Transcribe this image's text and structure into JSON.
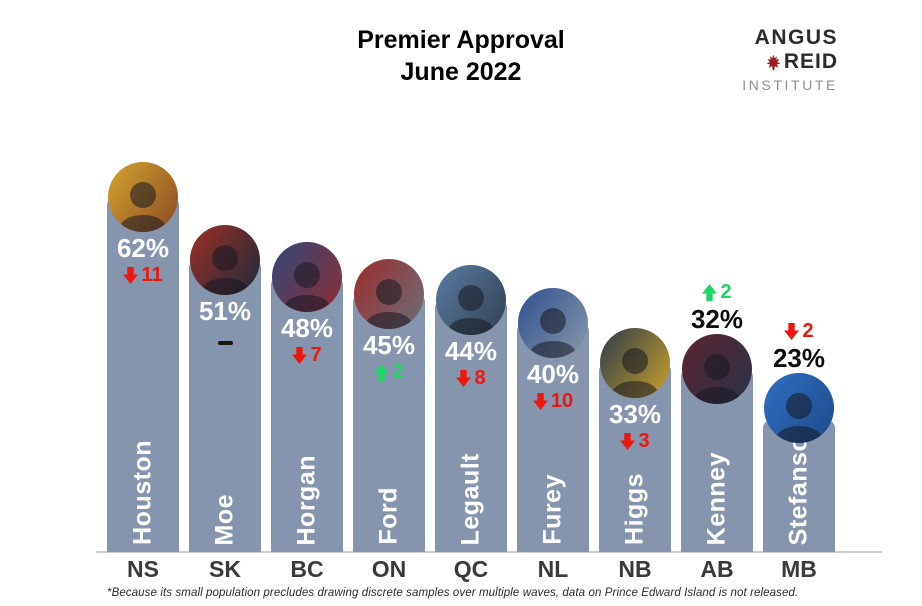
{
  "header": {
    "title_line1": "Premier Approval",
    "title_line2": "June 2022",
    "logo": {
      "line1": "ANGUS",
      "line2": "REID",
      "line3": "INSTITUTE",
      "leaf_color": "#9e1c1f"
    }
  },
  "footnote": "*Because its small population precludes drawing discrete samples over multiple waves, data on Prince Edward Island is not released.",
  "colors": {
    "bar": "#8595ae",
    "up": "#20d565",
    "down": "#ee170d",
    "pct_inside_text": "#ffffff",
    "pct_above_text": "#0d0d0d",
    "province_label": "#3a3a3a",
    "axis_line": "#cccccc",
    "no_change_dash": "#151515"
  },
  "chart_data": {
    "type": "bar",
    "title": "Premier Approval",
    "subtitle": "June 2022",
    "unit": "%",
    "ylim": [
      0,
      65
    ],
    "legend_position": "none",
    "grid": false,
    "categories": [
      "NS",
      "SK",
      "BC",
      "ON",
      "QC",
      "NL",
      "NB",
      "AB",
      "MB"
    ],
    "values": [
      62,
      51,
      48,
      45,
      44,
      40,
      33,
      32,
      23
    ],
    "changes": [
      -11,
      0,
      -7,
      2,
      -8,
      -10,
      -3,
      2,
      -2
    ],
    "premiers": [
      {
        "province": "NS",
        "name": "Houston",
        "approval": 62,
        "change": -11,
        "labels_above": false,
        "photo_colors": [
          "#d4a52f",
          "#8a4a23"
        ]
      },
      {
        "province": "SK",
        "name": "Moe",
        "approval": 51,
        "change": 0,
        "labels_above": false,
        "photo_colors": [
          "#9e2f26",
          "#1c2a3a"
        ]
      },
      {
        "province": "BC",
        "name": "Horgan",
        "approval": 48,
        "change": -7,
        "labels_above": false,
        "photo_colors": [
          "#31487a",
          "#8c2d33"
        ]
      },
      {
        "province": "ON",
        "name": "Ford",
        "approval": 45,
        "change": 2,
        "labels_above": false,
        "photo_colors": [
          "#9c2b2b",
          "#6b6f78"
        ]
      },
      {
        "province": "QC",
        "name": "Legault",
        "approval": 44,
        "change": -8,
        "labels_above": false,
        "photo_colors": [
          "#5a7ca3",
          "#32414f"
        ]
      },
      {
        "province": "NL",
        "name": "Furey",
        "approval": 40,
        "change": -10,
        "labels_above": false,
        "photo_colors": [
          "#2f4f8f",
          "#8899aa"
        ]
      },
      {
        "province": "NB",
        "name": "Higgs",
        "approval": 33,
        "change": -3,
        "labels_above": false,
        "photo_colors": [
          "#2b3a4a",
          "#caa12c"
        ]
      },
      {
        "province": "AB",
        "name": "Kenney",
        "approval": 32,
        "change": 2,
        "labels_above": true,
        "photo_colors": [
          "#5a2330",
          "#2a3348"
        ]
      },
      {
        "province": "MB",
        "name": "Stefanson",
        "approval": 23,
        "change": -2,
        "labels_above": true,
        "photo_raise": 12,
        "photo_colors": [
          "#2f6fc1",
          "#1e4a8a"
        ]
      }
    ]
  }
}
